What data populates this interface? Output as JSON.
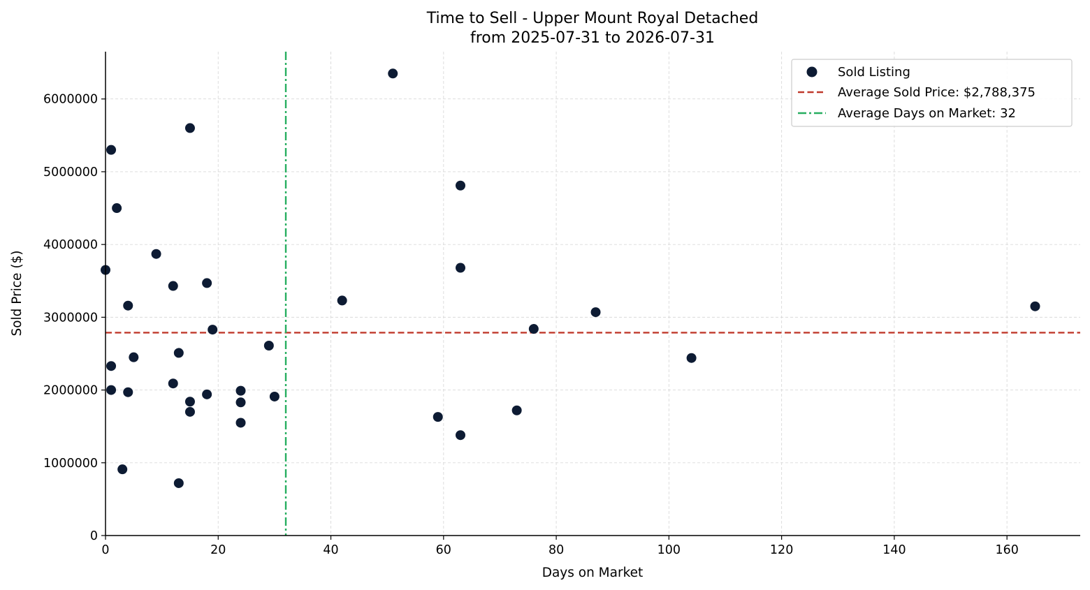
{
  "chart_data": {
    "type": "scatter",
    "title": "Time to Sell - Upper Mount Royal Detached",
    "subtitle": "from 2025-07-31 to 2026-07-31",
    "xlabel": "Days on Market",
    "ylabel": "Sold Price ($)",
    "xlim": [
      0,
      173
    ],
    "ylim": [
      0,
      6650000
    ],
    "xticks": [
      0,
      20,
      40,
      60,
      80,
      100,
      120,
      140,
      160
    ],
    "yticks": [
      0,
      1000000,
      2000000,
      3000000,
      4000000,
      5000000,
      6000000
    ],
    "xtick_labels": [
      "0",
      "20",
      "40",
      "60",
      "80",
      "100",
      "120",
      "140",
      "160"
    ],
    "ytick_labels": [
      "0",
      "1000000",
      "2000000",
      "3000000",
      "4000000",
      "5000000",
      "6000000"
    ],
    "grid": true,
    "legend_position": "top-right",
    "series": [
      {
        "name": "Sold Listing",
        "color": "#0d1b33",
        "points": [
          [
            0,
            3650000
          ],
          [
            1,
            5300000
          ],
          [
            1,
            2330000
          ],
          [
            1,
            2000000
          ],
          [
            2,
            4500000
          ],
          [
            3,
            910000
          ],
          [
            4,
            3160000
          ],
          [
            4,
            1970000
          ],
          [
            5,
            2450000
          ],
          [
            9,
            3870000
          ],
          [
            12,
            3430000
          ],
          [
            12,
            2090000
          ],
          [
            13,
            2510000
          ],
          [
            13,
            720000
          ],
          [
            15,
            5600000
          ],
          [
            15,
            1840000
          ],
          [
            15,
            1700000
          ],
          [
            18,
            3470000
          ],
          [
            18,
            1940000
          ],
          [
            19,
            2830000
          ],
          [
            24,
            1990000
          ],
          [
            24,
            1830000
          ],
          [
            24,
            1550000
          ],
          [
            29,
            2610000
          ],
          [
            30,
            1910000
          ],
          [
            42,
            3230000
          ],
          [
            51,
            6350000
          ],
          [
            59,
            1630000
          ],
          [
            63,
            4810000
          ],
          [
            63,
            3680000
          ],
          [
            63,
            1380000
          ],
          [
            73,
            1720000
          ],
          [
            76,
            2840000
          ],
          [
            87,
            3070000
          ],
          [
            104,
            2440000
          ],
          [
            165,
            3150000
          ]
        ]
      }
    ],
    "reference_lines": [
      {
        "orientation": "horizontal",
        "value": 2788375,
        "style": "dashed",
        "color": "#c0392b",
        "label": "Average Sold Price: $2,788,375"
      },
      {
        "orientation": "vertical",
        "value": 32,
        "style": "dashdot",
        "color": "#27ae60",
        "label": "Average Days on Market: 32"
      }
    ]
  }
}
